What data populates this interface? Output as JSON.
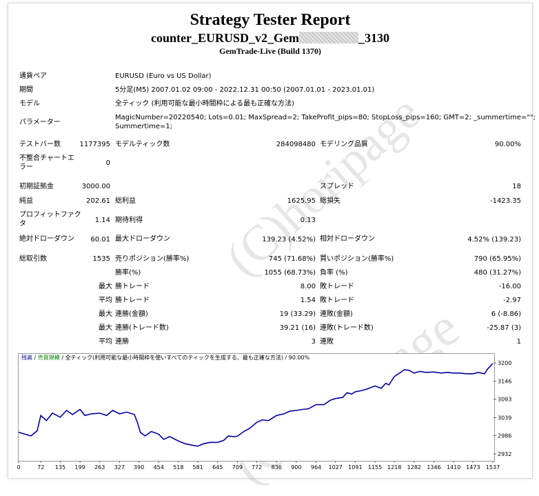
{
  "header": {
    "title": "Strategy Tester Report",
    "ea_name_prefix": "counter_EURUSD_v2_Gem",
    "ea_name_suffix": "_3130",
    "server_build": "GemTrade-Live (Build 1370)"
  },
  "info": {
    "symbol_label": "通貨ペア",
    "symbol_value": "EURUSD (Euro vs US Dollar)",
    "period_label": "期間",
    "period_value": "5分足(M5) 2007.01.02 09:00 - 2022.12.31 00:50 (2007.01.01 - 2023.01.01)",
    "model_label": "モデル",
    "model_value": "全ティック (利用可能な最小時間枠による最も正確な方法)",
    "params_label": "パラメーター",
    "params_line1": "MagicNumber=20220540; Lots=0.01; MaxSpread=2; TakeProfit_pips=80; StopLoss_pips=160; GMT=2; _summertime=\"\";",
    "params_line2": "Summertime=1;"
  },
  "stats": {
    "bars_label": "テストバー数",
    "bars_value": "1177395",
    "ticks_label": "モデルティック数",
    "ticks_value": "284098480",
    "quality_label": "モデリング品質",
    "quality_value": "90.00%",
    "mismatch_label_1": "不整合チャートエ",
    "mismatch_label_2": "ラー",
    "mismatch_value": "0",
    "deposit_label": "初期証拠金",
    "deposit_value": "3000.00",
    "spread_label": "スプレッド",
    "spread_value": "18",
    "net_label": "純益",
    "net_value": "202.61",
    "gross_profit_label": "総利益",
    "gross_profit_value": "1625.95",
    "gross_loss_label": "総損失",
    "gross_loss_value": "-1423.35",
    "pf_label_1": "プロフィットファク",
    "pf_label_2": "タ",
    "pf_value": "1.14",
    "expected_label": "期待利得",
    "expected_value": "0.13",
    "abs_dd_label": "絶対ドローダウン",
    "abs_dd_value": "60.01",
    "max_dd_label": "最大ドローダウン",
    "max_dd_value": "139.23 (4.52%)",
    "rel_dd_label": "相対ドローダウン",
    "rel_dd_value": "4.52% (139.23)",
    "total_trades_label": "総取引数",
    "total_trades_value": "1535",
    "short_label": "売りポジション(勝率%)",
    "short_value": "745 (71.68%)",
    "long_label": "買いポジション(勝率%)",
    "long_value": "790 (65.95%)",
    "win_label": "勝率(%)",
    "win_value": "1055 (68.73%)",
    "loss_label": "負率 (%)",
    "loss_value": "480 (31.27%)",
    "largest_label": "最大",
    "largest_win_label": "勝トレード",
    "largest_win_value": "8.00",
    "largest_loss_label": "敗トレード",
    "largest_loss_value": "-16.00",
    "average_label": "平均",
    "avg_win_label": "勝トレード",
    "avg_win_value": "1.54",
    "avg_loss_label": "敗トレード",
    "avg_loss_value": "-2.97",
    "max1_label": "最大",
    "cons_wins_money_label": "連勝(金額)",
    "cons_wins_money_value": "19 (33.29)",
    "cons_losses_money_label": "連敗(金額)",
    "cons_losses_money_value": "6 (-8.86)",
    "max2_label": "最大",
    "cons_profit_label": "連勝(トレード数)",
    "cons_profit_value": "39.21 (16)",
    "cons_loss_label": "連敗(トレード数)",
    "cons_loss_value": "-25.87 (3)",
    "avg2_label": "平均",
    "avg_cons_wins_label": "連勝",
    "avg_cons_wins_value": "3",
    "avg_cons_losses_label": "連敗",
    "avg_cons_losses_value": "1"
  },
  "watermark": {
    "text": "(C)horipage"
  },
  "chart_legend": {
    "balance": "残高",
    "sep1": " / ",
    "volume": "売買規模",
    "rest": " / 全ティック(利用可能な最小時間枠を使いすべてのティックを生成する、最も正確な方法) / 90.00%"
  },
  "chart_data": {
    "type": "line",
    "series": [
      {
        "name": "残高",
        "color": "#0000a0"
      }
    ],
    "x_ticks": [
      "0",
      "72",
      "135",
      "199",
      "263",
      "327",
      "390",
      "454",
      "518",
      "581",
      "645",
      "709",
      "772",
      "836",
      "900",
      "964",
      "1027",
      "1091",
      "1155",
      "1218",
      "1282",
      "1346",
      "1410",
      "1473",
      "1537"
    ],
    "y_ticks": [
      "3200",
      "3146",
      "3093",
      "3039",
      "2986",
      "2932"
    ],
    "ylim": [
      2932,
      3200
    ],
    "xlim": [
      0,
      1537
    ],
    "points": [
      [
        0,
        2996
      ],
      [
        20,
        2990
      ],
      [
        40,
        2985
      ],
      [
        60,
        3000
      ],
      [
        72,
        3045
      ],
      [
        90,
        3030
      ],
      [
        110,
        3052
      ],
      [
        135,
        3040
      ],
      [
        155,
        3060
      ],
      [
        175,
        3048
      ],
      [
        199,
        3063
      ],
      [
        215,
        3045
      ],
      [
        235,
        3050
      ],
      [
        263,
        3052
      ],
      [
        285,
        3045
      ],
      [
        305,
        3060
      ],
      [
        327,
        3050
      ],
      [
        350,
        3055
      ],
      [
        375,
        3048
      ],
      [
        385,
        3025
      ],
      [
        395,
        2995
      ],
      [
        410,
        2985
      ],
      [
        430,
        2998
      ],
      [
        454,
        2990
      ],
      [
        470,
        2975
      ],
      [
        490,
        2983
      ],
      [
        518,
        2970
      ],
      [
        540,
        2962
      ],
      [
        560,
        2958
      ],
      [
        581,
        2955
      ],
      [
        600,
        2962
      ],
      [
        620,
        2966
      ],
      [
        645,
        2966
      ],
      [
        665,
        2972
      ],
      [
        680,
        2985
      ],
      [
        695,
        2983
      ],
      [
        709,
        2984
      ],
      [
        730,
        2998
      ],
      [
        750,
        3008
      ],
      [
        772,
        3025
      ],
      [
        790,
        3032
      ],
      [
        810,
        3030
      ],
      [
        836,
        3045
      ],
      [
        860,
        3050
      ],
      [
        880,
        3058
      ],
      [
        900,
        3060
      ],
      [
        920,
        3063
      ],
      [
        940,
        3065
      ],
      [
        964,
        3077
      ],
      [
        990,
        3077
      ],
      [
        1010,
        3090
      ],
      [
        1027,
        3095
      ],
      [
        1050,
        3098
      ],
      [
        1065,
        3112
      ],
      [
        1080,
        3108
      ],
      [
        1091,
        3115
      ],
      [
        1110,
        3118
      ],
      [
        1130,
        3123
      ],
      [
        1155,
        3132
      ],
      [
        1175,
        3125
      ],
      [
        1190,
        3140
      ],
      [
        1200,
        3135
      ],
      [
        1218,
        3160
      ],
      [
        1235,
        3170
      ],
      [
        1250,
        3180
      ],
      [
        1265,
        3178
      ],
      [
        1282,
        3170
      ],
      [
        1300,
        3175
      ],
      [
        1320,
        3172
      ],
      [
        1346,
        3173
      ],
      [
        1370,
        3170
      ],
      [
        1390,
        3172
      ],
      [
        1410,
        3170
      ],
      [
        1430,
        3170
      ],
      [
        1450,
        3168
      ],
      [
        1473,
        3168
      ],
      [
        1490,
        3172
      ],
      [
        1510,
        3168
      ],
      [
        1520,
        3182
      ],
      [
        1537,
        3198
      ]
    ]
  }
}
